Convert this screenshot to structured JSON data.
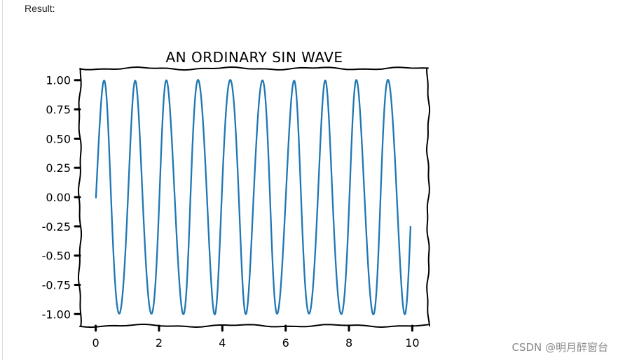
{
  "page": {
    "result_label": "Result:",
    "watermark": "CSDN @明月醉窗台"
  },
  "chart_data": {
    "type": "line",
    "title": "AN ORDINARY SIN WAVE",
    "xlabel": "",
    "ylabel": "",
    "xlim": [
      -0.5,
      10.5
    ],
    "ylim": [
      -1.1,
      1.1
    ],
    "function": "y = sin(2*pi*x)",
    "x_range": [
      0,
      9.96
    ],
    "x_step": 0.04,
    "xticks": [
      0,
      2,
      4,
      6,
      8,
      10
    ],
    "xtick_labels": [
      "0",
      "2",
      "4",
      "6",
      "8",
      "10"
    ],
    "yticks": [
      1.0,
      0.75,
      0.5,
      0.25,
      0.0,
      -0.25,
      -0.5,
      -0.75,
      -1.0
    ],
    "ytick_labels": [
      "1.00",
      "0.75",
      "0.50",
      "0.25",
      "0.00",
      "-0.25",
      "-0.50",
      "-0.75",
      "-1.00"
    ],
    "line_color": "#1f77b4",
    "style": "xkcd",
    "grid": false,
    "legend": "none"
  }
}
